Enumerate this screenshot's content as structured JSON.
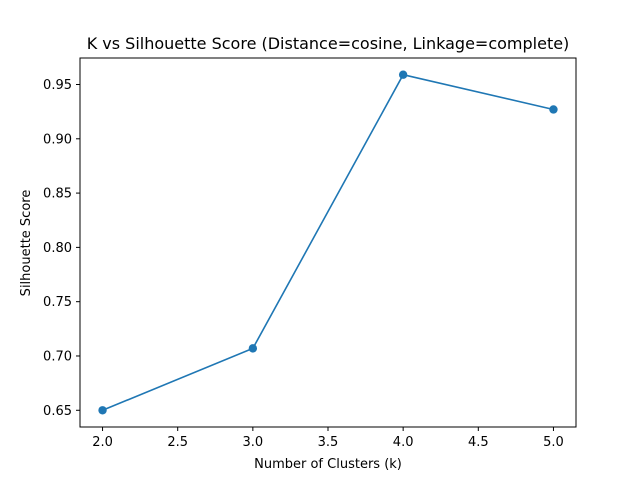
{
  "chart_data": {
    "type": "line",
    "title": "K vs Silhouette Score (Distance=cosine, Linkage=complete)",
    "xlabel": "Number of Clusters (k)",
    "ylabel": "Silhouette Score",
    "x": [
      2,
      3,
      4,
      5
    ],
    "series": [
      {
        "values": [
          0.65,
          0.707,
          0.959,
          0.927
        ],
        "color": "#1f77b4",
        "marker": "circle"
      }
    ],
    "xlim": [
      1.85,
      5.15
    ],
    "ylim": [
      0.6346,
      0.9744
    ],
    "xticks": [
      2.0,
      2.5,
      3.0,
      3.5,
      4.0,
      4.5,
      5.0
    ],
    "xtick_labels": [
      "2.0",
      "2.5",
      "3.0",
      "3.5",
      "4.0",
      "4.5",
      "5.0"
    ],
    "yticks": [
      0.65,
      0.7,
      0.75,
      0.8,
      0.85,
      0.9,
      0.95
    ],
    "ytick_labels": [
      "0.65",
      "0.70",
      "0.75",
      "0.80",
      "0.85",
      "0.90",
      "0.95"
    ],
    "grid": false,
    "legend": false
  }
}
